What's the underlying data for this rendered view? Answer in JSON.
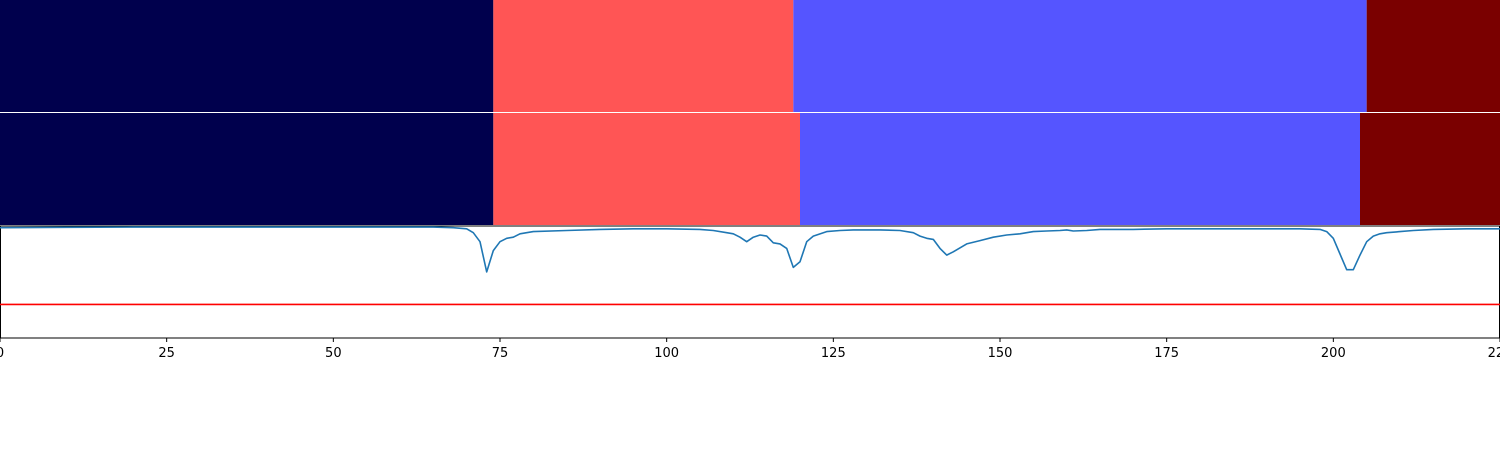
{
  "chart_data": [
    {
      "type": "heatmap",
      "segments": [
        {
          "start": 0,
          "end": 74,
          "color": "#00004d"
        },
        {
          "start": 74,
          "end": 119,
          "color": "#ff5555"
        },
        {
          "start": 119,
          "end": 205,
          "color": "#5555ff"
        },
        {
          "start": 205,
          "end": 225,
          "color": "#7a0000"
        }
      ],
      "xlim": [
        0,
        225
      ]
    },
    {
      "type": "heatmap",
      "segments": [
        {
          "start": 0,
          "end": 74,
          "color": "#00004d"
        },
        {
          "start": 74,
          "end": 120,
          "color": "#ff5555"
        },
        {
          "start": 120,
          "end": 204,
          "color": "#5555ff"
        },
        {
          "start": 204,
          "end": 225,
          "color": "#7a0000"
        }
      ],
      "xlim": [
        0,
        225
      ]
    },
    {
      "type": "line",
      "xlim": [
        0,
        225
      ],
      "ylim": [
        0,
        1
      ],
      "xticks": [
        0,
        25,
        50,
        75,
        100,
        125,
        150,
        175,
        200,
        225
      ],
      "xtick_labels": [
        "0",
        "25",
        "50",
        "75",
        "100",
        "125",
        "150",
        "175",
        "200",
        "225"
      ],
      "series": [
        {
          "color": "#1f77b4",
          "x": [
            0,
            10,
            20,
            30,
            40,
            50,
            60,
            65,
            68,
            70,
            71,
            72,
            73,
            74,
            75,
            76,
            77,
            78,
            80,
            85,
            90,
            95,
            100,
            105,
            107,
            109,
            110,
            111,
            112,
            113,
            114,
            115,
            116,
            117,
            118,
            119,
            120,
            121,
            122,
            124,
            126,
            128,
            130,
            132,
            135,
            137,
            138,
            139,
            140,
            141,
            142,
            143,
            145,
            147,
            149,
            151,
            153,
            155,
            157,
            159,
            160,
            161,
            163,
            165,
            170,
            175,
            180,
            185,
            190,
            195,
            198,
            199,
            200,
            201,
            202,
            203,
            204,
            205,
            206,
            207,
            208,
            210,
            212,
            215,
            220,
            225
          ],
          "y": [
            0.985,
            0.988,
            0.99,
            0.99,
            0.99,
            0.99,
            0.99,
            0.99,
            0.985,
            0.975,
            0.94,
            0.86,
            0.59,
            0.78,
            0.86,
            0.89,
            0.9,
            0.93,
            0.95,
            0.96,
            0.97,
            0.975,
            0.975,
            0.97,
            0.96,
            0.94,
            0.93,
            0.9,
            0.86,
            0.9,
            0.92,
            0.91,
            0.85,
            0.84,
            0.8,
            0.63,
            0.68,
            0.86,
            0.91,
            0.95,
            0.96,
            0.965,
            0.965,
            0.965,
            0.96,
            0.94,
            0.91,
            0.89,
            0.88,
            0.8,
            0.74,
            0.77,
            0.84,
            0.87,
            0.9,
            0.92,
            0.93,
            0.95,
            0.955,
            0.96,
            0.965,
            0.955,
            0.96,
            0.97,
            0.97,
            0.975,
            0.975,
            0.975,
            0.975,
            0.975,
            0.97,
            0.95,
            0.89,
            0.75,
            0.61,
            0.61,
            0.74,
            0.86,
            0.91,
            0.93,
            0.94,
            0.95,
            0.96,
            0.97,
            0.975,
            0.975
          ]
        },
        {
          "color": "#ff0000",
          "x": [
            0,
            225
          ],
          "y": [
            0.3,
            0.3
          ]
        }
      ]
    }
  ]
}
